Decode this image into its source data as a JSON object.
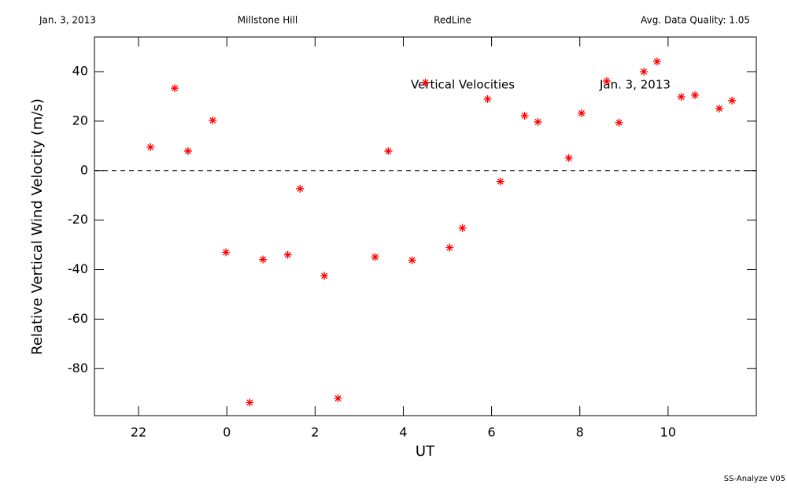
{
  "chart_data": {
    "type": "scatter",
    "header": [
      "Jan. 3, 2013",
      "Millstone Hill",
      "RedLine",
      "Avg. Data Quality: 1.05"
    ],
    "annotations": [
      "Vertical Velocities",
      "Jan. 3, 2013"
    ],
    "footer": "SS-Analyze V05",
    "x_label": "UT",
    "y_label": "Relative Vertical Wind Velocity (m/s)",
    "color": "#ff0000",
    "hline": 0,
    "xlim": [
      -3,
      12
    ],
    "ylim": [
      -99,
      54
    ],
    "xticks": [
      {
        "value": -2,
        "label": "22"
      },
      0,
      2,
      4,
      6,
      8,
      10
    ],
    "yticks": [
      -80,
      -60,
      -40,
      -20,
      0,
      20,
      40
    ],
    "x": [
      -1.73,
      -1.18,
      -0.88,
      -0.32,
      -0.02,
      0.52,
      0.82,
      1.38,
      1.66,
      2.21,
      2.52,
      3.36,
      3.66,
      4.2,
      4.5,
      5.05,
      5.34,
      5.91,
      6.2,
      6.75,
      7.05,
      7.75,
      8.04,
      8.61,
      8.89,
      9.45,
      9.75,
      10.3,
      10.61,
      11.16,
      11.45
    ],
    "values": [
      9.5,
      33.3,
      7.9,
      20.3,
      -33,
      -93.7,
      -35.9,
      -34,
      -7.3,
      -42.5,
      -92,
      -34.9,
      7.9,
      -36.2,
      35.6,
      -31.1,
      -23.2,
      28.9,
      -4.4,
      22.2,
      19.7,
      5.1,
      23.2,
      36.2,
      19.4,
      40,
      44.1,
      29.8,
      30.5,
      25.1,
      28.3
    ]
  }
}
